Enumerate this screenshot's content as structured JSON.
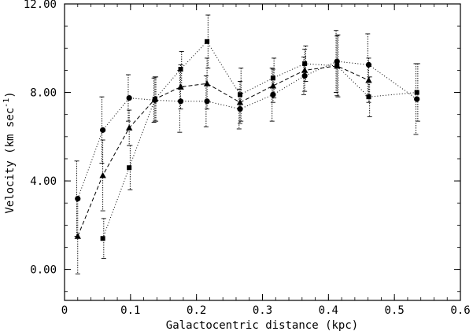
{
  "chart_data": {
    "type": "scatter",
    "xlabel": "Galactocentric distance (kpc)",
    "ylabel_main": "Velocity  (km sec",
    "ylabel_sup": "-1",
    "ylabel_close": ")",
    "xlim": [
      0,
      0.6
    ],
    "ylim": [
      -1.4,
      12.0
    ],
    "xticks": [
      0,
      0.1,
      0.2,
      0.3,
      0.4,
      0.5,
      0.6
    ],
    "xtick_labels": [
      "0",
      "0.1",
      "0.2",
      "0.3",
      "0.4",
      "0.5",
      "0.6"
    ],
    "yticks": [
      0,
      4,
      8,
      12
    ],
    "ytick_labels": [
      "0.00",
      "4.00",
      "8.00",
      "12.00"
    ],
    "grid": false,
    "series": [
      {
        "marker": "circle",
        "linestyle": "dotted",
        "x": [
          0.02,
          0.058,
          0.098,
          0.137,
          0.176,
          0.216,
          0.266,
          0.316,
          0.364,
          0.413,
          0.461,
          0.534
        ],
        "y": [
          3.2,
          6.3,
          7.75,
          7.65,
          7.6,
          7.6,
          7.25,
          7.9,
          8.75,
          9.4,
          9.25,
          7.7
        ],
        "err": [
          1.7,
          1.5,
          1.05,
          1.0,
          1.4,
          1.15,
          0.9,
          1.2,
          0.85,
          1.4,
          1.4,
          1.6
        ]
      },
      {
        "marker": "triangle",
        "linestyle": "dashed",
        "x": [
          0.02,
          0.058,
          0.098,
          0.137,
          0.176,
          0.216,
          0.266,
          0.316,
          0.364,
          0.413,
          0.461
        ],
        "y": [
          1.5,
          4.25,
          6.4,
          7.7,
          8.25,
          8.4,
          7.55,
          8.3,
          9.0,
          9.2,
          8.55
        ],
        "err": [
          1.7,
          1.6,
          0.8,
          1.0,
          1.0,
          1.15,
          0.95,
          0.75,
          0.95,
          1.35,
          1.0
        ]
      },
      {
        "marker": "square",
        "linestyle": "dotted",
        "x": [
          0.058,
          0.098,
          0.137,
          0.176,
          0.216,
          0.266,
          0.316,
          0.364,
          0.413,
          0.461,
          0.534
        ],
        "y": [
          1.4,
          4.6,
          7.7,
          9.05,
          10.3,
          7.9,
          8.65,
          9.3,
          9.2,
          7.8,
          8.0
        ],
        "err": [
          0.9,
          1.0,
          1.0,
          0.8,
          1.2,
          1.2,
          0.9,
          0.8,
          1.4,
          0.9,
          1.3
        ]
      }
    ]
  }
}
